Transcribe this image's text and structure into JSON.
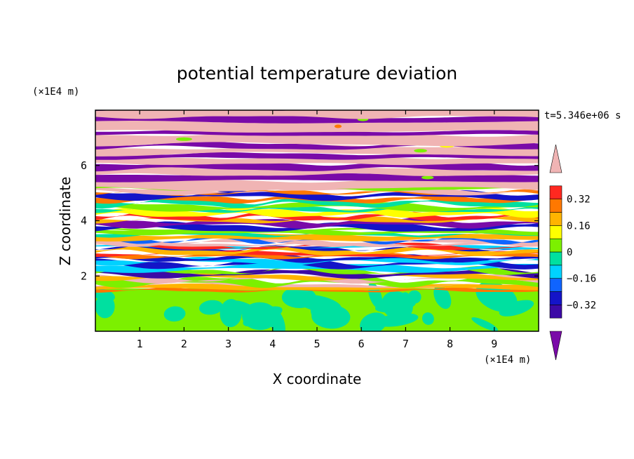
{
  "chart_data": {
    "type": "heatmap",
    "title": "potential temperature deviation",
    "xlabel": "X coordinate",
    "ylabel": "Z coordinate",
    "x_unit": "(×1E4 m)",
    "y_unit": "(×1E4 m)",
    "time_label": "t=5.346e+06 s",
    "xlim": [
      0,
      10
    ],
    "ylim": [
      0,
      8
    ],
    "x_ticks": [
      1,
      2,
      3,
      4,
      5,
      6,
      7,
      8,
      9
    ],
    "x_tick_labels": [
      "1",
      "2",
      "3",
      "4",
      "5",
      "6",
      "7",
      "8",
      "9"
    ],
    "y_ticks": [
      2,
      4,
      6
    ],
    "y_tick_labels": [
      "2",
      "4",
      "6"
    ],
    "colorbar": {
      "levels": [
        -0.48,
        -0.4,
        -0.32,
        -0.24,
        -0.16,
        -0.08,
        0,
        0.08,
        0.16,
        0.24,
        0.32,
        0.4,
        0.48
      ],
      "tick_labels": [
        "0.32",
        "0.16",
        "0",
        "−0.16",
        "−0.32"
      ],
      "tick_values": [
        0.32,
        0.16,
        0,
        -0.16,
        -0.32
      ],
      "colors": [
        "#7a0aa8",
        "#3c0aa6",
        "#1414c8",
        "#0f64ff",
        "#00d2ff",
        "#00e0a0",
        "#7cf000",
        "#ffff00",
        "#ffb400",
        "#ff7800",
        "#ff2820",
        "#f0b4b4"
      ],
      "extend": "both"
    },
    "layers": [
      {
        "z": [
          0.0,
          1.45
        ],
        "description_values": [
          "0",
          "0.08"
        ],
        "pattern": "eddies"
      },
      {
        "z": [
          1.45,
          5.2
        ],
        "pattern": "mixed bands"
      },
      {
        "z": [
          5.2,
          8.0
        ],
        "values": [
          -0.48,
          0.48
        ],
        "pattern": "alternating layers"
      }
    ]
  }
}
